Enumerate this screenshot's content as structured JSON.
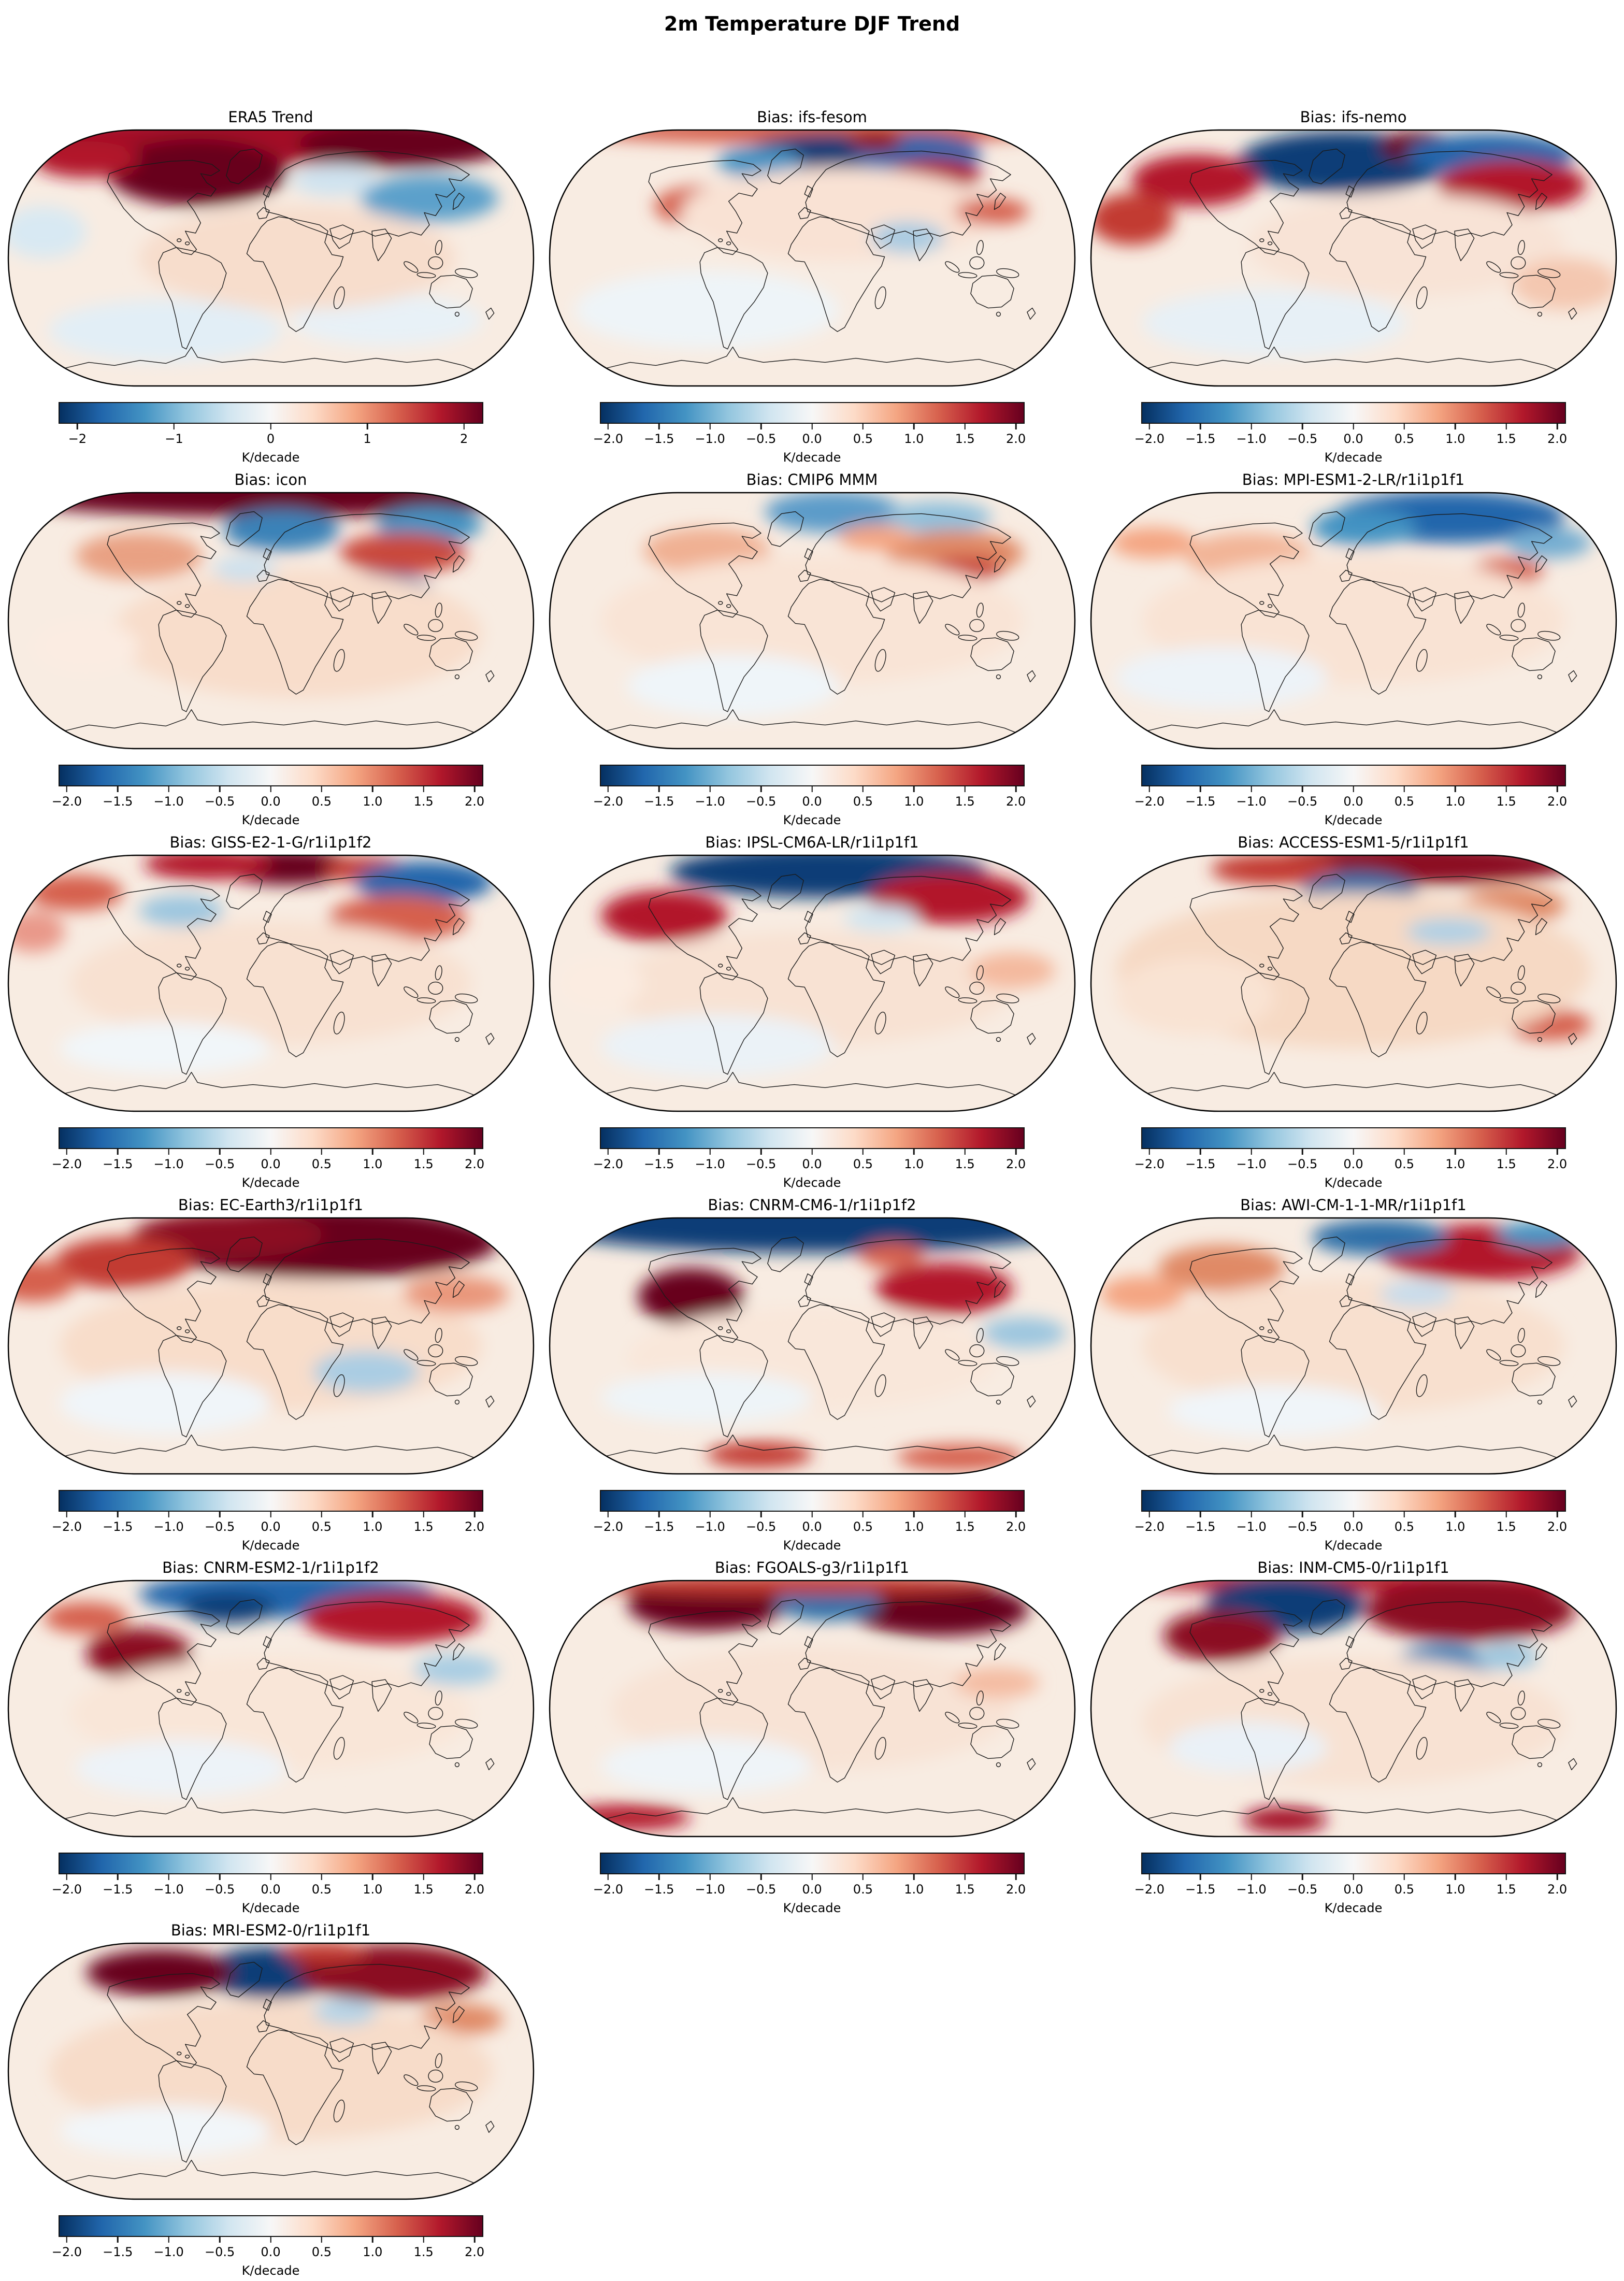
{
  "page_title": "2m Temperature DJF Trend",
  "units_label": "K/decade",
  "colorbar": {
    "colormap": "RdBu_r",
    "colormap_stops": [
      "#053061",
      "#2166ac",
      "#4393c3",
      "#92c5de",
      "#d1e5f0",
      "#f7f7f7",
      "#fddbc7",
      "#f4a582",
      "#d6604d",
      "#b2182b",
      "#67001f"
    ],
    "tick_sets": {
      "era5": [
        "−2",
        "−1",
        "0",
        "1",
        "2"
      ],
      "bias": [
        "−2.0",
        "−1.5",
        "−1.0",
        "−0.5",
        "0.0",
        "0.5",
        "1.0",
        "1.5",
        "2.0"
      ]
    },
    "tick_positions": {
      "era5": [
        0.045,
        0.2725,
        0.5,
        0.7275,
        0.955
      ],
      "bias": [
        0.02,
        0.14,
        0.26,
        0.38,
        0.5,
        0.62,
        0.74,
        0.86,
        0.98
      ]
    }
  },
  "chart_data": {
    "type": "heatmap",
    "title": "2m Temperature DJF Trend",
    "projection": "Robinson",
    "units": "K/decade",
    "colorbar_range": [
      -2,
      2
    ],
    "colormap": "RdBu_r",
    "grid": {
      "rows": 6,
      "cols": 3,
      "order": "row-major"
    },
    "base_field_color": "#f8ece2",
    "anomaly_format": "[center_x_frac, center_y_frac, radius_x_frac, radius_y_frac, color]",
    "panels": [
      {
        "title": "ERA5 Trend",
        "tick_set": "era5",
        "anomalies": [
          [
            0.5,
            0.04,
            0.5,
            0.1,
            "#a31126"
          ],
          [
            0.36,
            0.17,
            0.17,
            0.13,
            "#67001f"
          ],
          [
            0.75,
            0.06,
            0.2,
            0.09,
            "#67001f"
          ],
          [
            0.15,
            0.12,
            0.1,
            0.07,
            "#b2182b"
          ],
          [
            0.8,
            0.27,
            0.13,
            0.09,
            "#5ba0cb"
          ],
          [
            0.62,
            0.2,
            0.08,
            0.06,
            "#cfe3f0"
          ],
          [
            0.07,
            0.4,
            0.08,
            0.1,
            "#d8e9f3"
          ],
          [
            0.3,
            0.78,
            0.22,
            0.12,
            "#e2eef6"
          ],
          [
            0.72,
            0.74,
            0.18,
            0.1,
            "#e8f1f7"
          ],
          [
            0.55,
            0.5,
            0.3,
            0.2,
            "#f7ddcc"
          ]
        ]
      },
      {
        "title": "Bias: ifs-fesom",
        "tick_set": "bias",
        "anomalies": [
          [
            0.5,
            0.01,
            0.45,
            0.05,
            "#d6604d"
          ],
          [
            0.53,
            0.11,
            0.16,
            0.09,
            "#0b3d77"
          ],
          [
            0.7,
            0.1,
            0.12,
            0.08,
            "#2166ac"
          ],
          [
            0.4,
            0.13,
            0.08,
            0.06,
            "#4393c3"
          ],
          [
            0.62,
            0.05,
            0.05,
            0.04,
            "#8b0e20"
          ],
          [
            0.73,
            0.18,
            0.09,
            0.06,
            "#b2182b"
          ],
          [
            0.3,
            0.3,
            0.1,
            0.08,
            "#d6604d"
          ],
          [
            0.55,
            0.33,
            0.3,
            0.18,
            "#f9e2d4"
          ],
          [
            0.68,
            0.42,
            0.07,
            0.06,
            "#a8cbe2"
          ],
          [
            0.84,
            0.32,
            0.07,
            0.05,
            "#d6604d"
          ],
          [
            0.3,
            0.7,
            0.25,
            0.15,
            "#eef4f8"
          ]
        ]
      },
      {
        "title": "Bias: ifs-nemo",
        "tick_set": "bias",
        "anomalies": [
          [
            0.48,
            0.13,
            0.2,
            0.12,
            "#0b3d77"
          ],
          [
            0.62,
            0.07,
            0.07,
            0.06,
            "#67001f"
          ],
          [
            0.76,
            0.1,
            0.16,
            0.08,
            "#2166ac"
          ],
          [
            0.2,
            0.2,
            0.12,
            0.1,
            "#b2182b"
          ],
          [
            0.8,
            0.22,
            0.14,
            0.1,
            "#b2182b"
          ],
          [
            0.08,
            0.35,
            0.08,
            0.1,
            "#c23a31"
          ],
          [
            0.6,
            0.45,
            0.3,
            0.2,
            "#f8e3d6"
          ],
          [
            0.35,
            0.75,
            0.25,
            0.13,
            "#e7f0f6"
          ],
          [
            0.9,
            0.6,
            0.1,
            0.1,
            "#f4c7b0"
          ]
        ]
      },
      {
        "title": "Bias: icon",
        "tick_set": "bias",
        "anomalies": [
          [
            0.5,
            0.02,
            0.5,
            0.08,
            "#67001f"
          ],
          [
            0.52,
            0.15,
            0.11,
            0.08,
            "#3b82b8"
          ],
          [
            0.7,
            0.4,
            0.11,
            0.09,
            "#2166ac"
          ],
          [
            0.8,
            0.13,
            0.1,
            0.07,
            "#4393c3"
          ],
          [
            0.75,
            0.24,
            0.12,
            0.08,
            "#c94a3d"
          ],
          [
            0.25,
            0.25,
            0.12,
            0.09,
            "#e9a183"
          ],
          [
            0.55,
            0.55,
            0.35,
            0.25,
            "#f8ddcb"
          ],
          [
            0.15,
            0.6,
            0.1,
            0.1,
            "#fbece2"
          ],
          [
            0.45,
            0.3,
            0.06,
            0.05,
            "#cde1ee"
          ]
        ]
      },
      {
        "title": "Bias: CMIP6 MMM",
        "tick_set": "bias",
        "anomalies": [
          [
            0.54,
            0.08,
            0.13,
            0.08,
            "#5b9bc9"
          ],
          [
            0.74,
            0.1,
            0.1,
            0.06,
            "#8fc0dc"
          ],
          [
            0.77,
            0.24,
            0.13,
            0.09,
            "#e08a66"
          ],
          [
            0.79,
            0.3,
            0.07,
            0.05,
            "#c94a3d"
          ],
          [
            0.3,
            0.23,
            0.12,
            0.09,
            "#f0b093"
          ],
          [
            0.5,
            0.5,
            0.4,
            0.25,
            "#f9e4d6"
          ],
          [
            0.35,
            0.75,
            0.2,
            0.12,
            "#eff5f9"
          ],
          [
            0.62,
            0.18,
            0.07,
            0.05,
            "#f4a582"
          ]
        ]
      },
      {
        "title": "Bias: MPI-ESM1-2-LR/r1i1p1f1",
        "tick_set": "bias",
        "anomalies": [
          [
            0.68,
            0.1,
            0.22,
            0.1,
            "#2166ac"
          ],
          [
            0.52,
            0.14,
            0.1,
            0.07,
            "#4393c3"
          ],
          [
            0.87,
            0.2,
            0.08,
            0.06,
            "#74add1"
          ],
          [
            0.79,
            0.31,
            0.07,
            0.05,
            "#d6604d"
          ],
          [
            0.3,
            0.25,
            0.12,
            0.09,
            "#f2b496"
          ],
          [
            0.5,
            0.5,
            0.4,
            0.25,
            "#f9e3d4"
          ],
          [
            0.25,
            0.72,
            0.2,
            0.12,
            "#edf3f8"
          ],
          [
            0.12,
            0.2,
            0.08,
            0.06,
            "#f4a582"
          ]
        ]
      },
      {
        "title": "Bias: GISS-E2-1-G/r1i1p1f2",
        "tick_set": "bias",
        "anomalies": [
          [
            0.53,
            0.05,
            0.13,
            0.07,
            "#67001f"
          ],
          [
            0.38,
            0.04,
            0.12,
            0.06,
            "#b2182b"
          ],
          [
            0.68,
            0.06,
            0.08,
            0.05,
            "#c23a31"
          ],
          [
            0.79,
            0.11,
            0.13,
            0.08,
            "#2166ac"
          ],
          [
            0.13,
            0.15,
            0.09,
            0.07,
            "#d6604d"
          ],
          [
            0.74,
            0.25,
            0.13,
            0.09,
            "#d6604d"
          ],
          [
            0.33,
            0.22,
            0.08,
            0.06,
            "#9cc6df"
          ],
          [
            0.5,
            0.5,
            0.38,
            0.24,
            "#f8e1d1"
          ],
          [
            0.3,
            0.75,
            0.2,
            0.1,
            "#f1f6f9"
          ],
          [
            0.05,
            0.3,
            0.06,
            0.08,
            "#e9998a"
          ]
        ]
      },
      {
        "title": "Bias: IPSL-CM6A-LR/r1i1p1f1",
        "tick_set": "bias",
        "anomalies": [
          [
            0.53,
            0.07,
            0.3,
            0.1,
            "#0b3d77"
          ],
          [
            0.22,
            0.24,
            0.12,
            0.1,
            "#b2182b"
          ],
          [
            0.76,
            0.17,
            0.15,
            0.1,
            "#b2182b"
          ],
          [
            0.63,
            0.25,
            0.07,
            0.05,
            "#d1e5f0"
          ],
          [
            0.5,
            0.52,
            0.38,
            0.22,
            "#f8e2d3"
          ],
          [
            0.32,
            0.74,
            0.22,
            0.12,
            "#ebf2f7"
          ],
          [
            0.1,
            0.5,
            0.08,
            0.1,
            "#fbece1"
          ],
          [
            0.88,
            0.45,
            0.08,
            0.07,
            "#f4b99e"
          ]
        ]
      },
      {
        "title": "Bias: ACCESS-ESM1-5/r1i1p1f1",
        "tick_set": "bias",
        "anomalies": [
          [
            0.62,
            0.04,
            0.3,
            0.08,
            "#8b0e20"
          ],
          [
            0.35,
            0.06,
            0.12,
            0.06,
            "#c23a31"
          ],
          [
            0.51,
            0.15,
            0.11,
            0.08,
            "#2f6fa8"
          ],
          [
            0.8,
            0.2,
            0.1,
            0.07,
            "#e08a66"
          ],
          [
            0.87,
            0.66,
            0.08,
            0.06,
            "#d6604d"
          ],
          [
            0.5,
            0.45,
            0.45,
            0.3,
            "#f6d9c4"
          ],
          [
            0.2,
            0.55,
            0.15,
            0.15,
            "#f9e3d3"
          ],
          [
            0.68,
            0.3,
            0.08,
            0.05,
            "#aed0e5"
          ]
        ]
      },
      {
        "title": "Bias: EC-Earth3/r1i1p1f1",
        "tick_set": "bias",
        "anomalies": [
          [
            0.6,
            0.1,
            0.33,
            0.14,
            "#67001f"
          ],
          [
            0.42,
            0.07,
            0.18,
            0.09,
            "#8b0e20"
          ],
          [
            0.22,
            0.18,
            0.13,
            0.1,
            "#c23a31"
          ],
          [
            0.05,
            0.25,
            0.08,
            0.08,
            "#d6604d"
          ],
          [
            0.5,
            0.5,
            0.4,
            0.25,
            "#f8ddca"
          ],
          [
            0.3,
            0.72,
            0.2,
            0.12,
            "#f0f5f9"
          ],
          [
            0.68,
            0.6,
            0.1,
            0.08,
            "#aacde3"
          ],
          [
            0.85,
            0.3,
            0.1,
            0.07,
            "#e9967a"
          ]
        ]
      },
      {
        "title": "Bias: CNRM-CM6-1/r1i1p1f2",
        "tick_set": "bias",
        "anomalies": [
          [
            0.5,
            0.03,
            0.52,
            0.11,
            "#0b3d77"
          ],
          [
            0.27,
            0.31,
            0.1,
            0.11,
            "#67001f"
          ],
          [
            0.75,
            0.28,
            0.13,
            0.1,
            "#b2182b"
          ],
          [
            0.65,
            0.15,
            0.06,
            0.05,
            "#d6604d"
          ],
          [
            0.4,
            0.92,
            0.1,
            0.05,
            "#c23a31"
          ],
          [
            0.78,
            0.93,
            0.12,
            0.05,
            "#d6604d"
          ],
          [
            0.5,
            0.55,
            0.35,
            0.2,
            "#f9e7da"
          ],
          [
            0.3,
            0.7,
            0.2,
            0.1,
            "#eef4f8"
          ],
          [
            0.9,
            0.45,
            0.08,
            0.06,
            "#9cc6df"
          ]
        ]
      },
      {
        "title": "Bias: AWI-CM-1-1-MR/r1i1p1f1",
        "tick_set": "bias",
        "anomalies": [
          [
            0.74,
            0.14,
            0.19,
            0.11,
            "#b2182b"
          ],
          [
            0.55,
            0.08,
            0.13,
            0.07,
            "#2f6fa8"
          ],
          [
            0.85,
            0.07,
            0.08,
            0.05,
            "#4393c3"
          ],
          [
            0.25,
            0.2,
            0.12,
            0.09,
            "#e08a66"
          ],
          [
            0.1,
            0.3,
            0.08,
            0.07,
            "#f4a582"
          ],
          [
            0.5,
            0.5,
            0.4,
            0.26,
            "#f8e0cf"
          ],
          [
            0.35,
            0.75,
            0.2,
            0.1,
            "#f0f5f9"
          ],
          [
            0.62,
            0.3,
            0.07,
            0.05,
            "#c6dcec"
          ]
        ]
      },
      {
        "title": "Bias: CNRM-ESM2-1/r1i1p1f2",
        "tick_set": "bias",
        "anomalies": [
          [
            0.53,
            0.06,
            0.28,
            0.09,
            "#2166ac"
          ],
          [
            0.42,
            0.11,
            0.09,
            0.06,
            "#0b3d77"
          ],
          [
            0.25,
            0.29,
            0.1,
            0.1,
            "#8b0e20"
          ],
          [
            0.73,
            0.15,
            0.17,
            0.1,
            "#b2182b"
          ],
          [
            0.15,
            0.15,
            0.08,
            0.06,
            "#d6604d"
          ],
          [
            0.5,
            0.52,
            0.38,
            0.22,
            "#f9e6d8"
          ],
          [
            0.33,
            0.73,
            0.2,
            0.11,
            "#edf3f8"
          ],
          [
            0.85,
            0.35,
            0.08,
            0.06,
            "#a9cde3"
          ]
        ]
      },
      {
        "title": "Bias: FGOALS-g3/r1i1p1f1",
        "tick_set": "bias",
        "anomalies": [
          [
            0.3,
            0.1,
            0.15,
            0.1,
            "#67001f"
          ],
          [
            0.74,
            0.12,
            0.17,
            0.1,
            "#67001f"
          ],
          [
            0.53,
            0.09,
            0.1,
            0.07,
            "#2f6fa8"
          ],
          [
            0.45,
            0.02,
            0.4,
            0.04,
            "#c23a31"
          ],
          [
            0.15,
            0.92,
            0.12,
            0.05,
            "#b2182b"
          ],
          [
            0.5,
            0.5,
            0.38,
            0.24,
            "#f8e3d5"
          ],
          [
            0.3,
            0.72,
            0.2,
            0.11,
            "#eff4f8"
          ],
          [
            0.85,
            0.4,
            0.08,
            0.06,
            "#f4bca2"
          ]
        ]
      },
      {
        "title": "Bias: INM-CM5-0/r1i1p1f1",
        "tick_set": "bias",
        "anomalies": [
          [
            0.5,
            0.01,
            0.45,
            0.04,
            "#b2182b"
          ],
          [
            0.37,
            0.1,
            0.15,
            0.11,
            "#0b3d77"
          ],
          [
            0.25,
            0.22,
            0.11,
            0.1,
            "#8b0e20"
          ],
          [
            0.72,
            0.12,
            0.2,
            0.12,
            "#8b0e20"
          ],
          [
            0.67,
            0.33,
            0.09,
            0.08,
            "#3b82b8"
          ],
          [
            0.79,
            0.3,
            0.06,
            0.05,
            "#9cc6df"
          ],
          [
            0.5,
            0.55,
            0.4,
            0.25,
            "#f8e2d3"
          ],
          [
            0.37,
            0.93,
            0.08,
            0.05,
            "#a31126"
          ],
          [
            0.3,
            0.65,
            0.15,
            0.1,
            "#eaf1f7"
          ]
        ]
      },
      {
        "title": "Bias: MRI-ESM2-0/r1i1p1f1",
        "tick_set": "bias",
        "anomalies": [
          [
            0.5,
            0.12,
            0.13,
            0.1,
            "#0b3d77"
          ],
          [
            0.29,
            0.12,
            0.14,
            0.09,
            "#67001f"
          ],
          [
            0.73,
            0.12,
            0.18,
            0.11,
            "#8b0e20"
          ],
          [
            0.6,
            0.04,
            0.08,
            0.04,
            "#c23a31"
          ],
          [
            0.86,
            0.3,
            0.08,
            0.06,
            "#e08a66"
          ],
          [
            0.5,
            0.5,
            0.42,
            0.27,
            "#f7dcc9"
          ],
          [
            0.3,
            0.73,
            0.2,
            0.1,
            "#f2f6f9"
          ],
          [
            0.64,
            0.27,
            0.06,
            0.05,
            "#b5d4e7"
          ]
        ]
      }
    ]
  }
}
